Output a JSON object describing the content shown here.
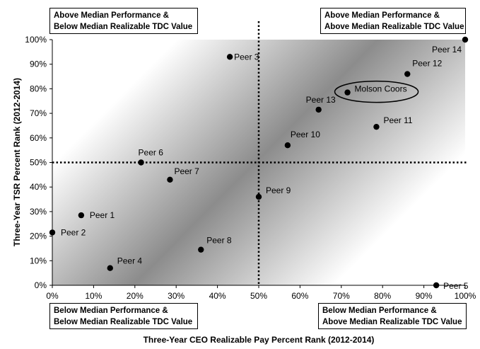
{
  "chart_data": {
    "type": "scatter",
    "xlabel": "Three-Year CEO Realizable Pay Percent Rank (2012-2014)",
    "ylabel": "Three-Year TSR Percent Rank (2012-2014)",
    "xlim": [
      0,
      100
    ],
    "ylim": [
      0,
      100
    ],
    "x_ticks": [
      "0%",
      "10%",
      "20%",
      "30%",
      "40%",
      "50%",
      "60%",
      "70%",
      "80%",
      "90%",
      "100%"
    ],
    "y_ticks": [
      "0%",
      "10%",
      "20%",
      "30%",
      "40%",
      "50%",
      "60%",
      "70%",
      "80%",
      "90%",
      "100%"
    ],
    "median_lines": {
      "x": 50,
      "y": 50
    },
    "points": [
      {
        "label": "Peer 1",
        "x": 7,
        "y": 28.5
      },
      {
        "label": "Peer 2",
        "x": 0,
        "y": 21.5
      },
      {
        "label": "Peer 3",
        "x": 43,
        "y": 93
      },
      {
        "label": "Peer 4",
        "x": 14,
        "y": 7
      },
      {
        "label": "Peer 5",
        "x": 93,
        "y": 0
      },
      {
        "label": "Peer 6",
        "x": 21.5,
        "y": 50
      },
      {
        "label": "Peer 7",
        "x": 28.5,
        "y": 43
      },
      {
        "label": "Peer 8",
        "x": 36,
        "y": 14.5
      },
      {
        "label": "Peer 9",
        "x": 50,
        "y": 36
      },
      {
        "label": "Peer 10",
        "x": 57,
        "y": 57
      },
      {
        "label": "Peer 11",
        "x": 78.5,
        "y": 64.5
      },
      {
        "label": "Peer 12",
        "x": 86,
        "y": 86
      },
      {
        "label": "Peer 13",
        "x": 64.5,
        "y": 71.5
      },
      {
        "label": "Peer 14",
        "x": 100,
        "y": 100
      },
      {
        "label": "Molson Coors",
        "x": 71.5,
        "y": 78.5,
        "highlight": true
      }
    ],
    "quadrants": {
      "top_left": [
        "Above Median Performance &",
        "Below Median Realizable TDC Value"
      ],
      "top_right": [
        "Above Median Performance &",
        "Above Median Realizable TDC Value"
      ],
      "bottom_left": [
        "Below Median Performance &",
        "Below Median Realizable TDC Value"
      ],
      "bottom_right": [
        "Below Median Performance &",
        "Above Median Realizable TDC Value"
      ]
    },
    "colors": {
      "point": "#000000",
      "band_dark": "#8c8c8c",
      "band_light": "#ffffff"
    },
    "grid": false,
    "legend": "none"
  }
}
